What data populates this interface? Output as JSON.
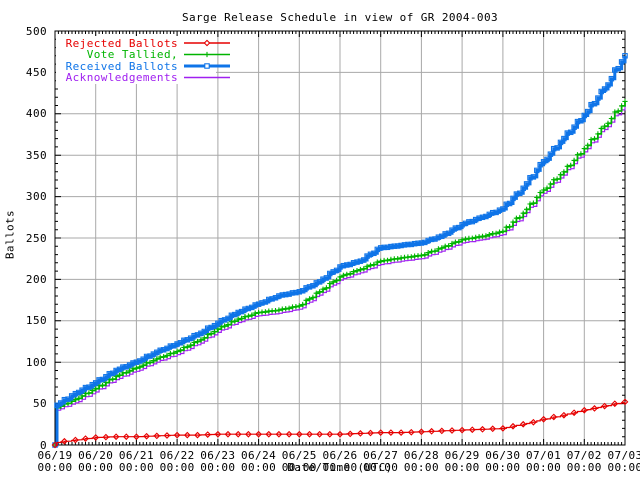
{
  "chart_data": {
    "type": "line",
    "title": "Sarge Release Schedule in view of GR 2004-003",
    "xlabel": "Date/Time (UTC)",
    "ylabel": "Ballots",
    "ylim": [
      0,
      500
    ],
    "y_ticks": [
      0,
      50,
      100,
      150,
      200,
      250,
      300,
      350,
      400,
      450,
      500
    ],
    "x_tick_dates": [
      "06/19",
      "06/20",
      "06/21",
      "06/22",
      "06/23",
      "06/24",
      "06/25",
      "06/26",
      "06/27",
      "06/28",
      "06/29",
      "06/30",
      "07/01",
      "07/02",
      "07/03"
    ],
    "x_tick_time": "00:00",
    "x_range_days": [
      0,
      14
    ],
    "grid": true,
    "grid_color": "#a8a8a8",
    "axis_color": "#000000",
    "background_color": "#ffffff",
    "legend_position": "top-left",
    "x": [
      0,
      0.05,
      0.5,
      1,
      1.5,
      2,
      2.5,
      3,
      3.5,
      4,
      4.5,
      5,
      5.5,
      6,
      6.5,
      7,
      7.5,
      8,
      8.5,
      9,
      9.5,
      10,
      10.5,
      11,
      11.5,
      12,
      12.5,
      13,
      13.5,
      14
    ],
    "series": [
      {
        "name": "Rejected Ballots",
        "color": "#e60000",
        "marker": "diamond",
        "values": [
          0,
          3,
          6,
          9,
          10,
          10,
          11,
          12,
          12,
          13,
          13,
          13,
          13,
          13,
          13,
          13,
          14,
          15,
          15,
          16,
          17,
          18,
          19,
          20,
          25,
          31,
          36,
          42,
          47,
          52
        ]
      },
      {
        "name": "Vote Tallied,",
        "color": "#00b400",
        "marker": "plus",
        "values": [
          0,
          45,
          55,
          68,
          83,
          93,
          104,
          113,
          125,
          140,
          152,
          160,
          163,
          168,
          185,
          203,
          212,
          222,
          226,
          229,
          238,
          248,
          252,
          258,
          280,
          308,
          330,
          358,
          385,
          415
        ]
      },
      {
        "name": "Received Ballots",
        "color": "#0f74e8",
        "marker": "square",
        "values": [
          0,
          48,
          62,
          75,
          90,
          100,
          112,
          122,
          133,
          147,
          160,
          170,
          180,
          185,
          197,
          215,
          222,
          238,
          241,
          244,
          252,
          266,
          275,
          285,
          310,
          342,
          370,
          398,
          430,
          470
        ]
      },
      {
        "name": "Acknowledgements",
        "color": "#a020f0",
        "marker": "none",
        "values": [
          0,
          42,
          51,
          64,
          79,
          89,
          100,
          109,
          121,
          136,
          148,
          156,
          159,
          164,
          181,
          199,
          208,
          218,
          222,
          225,
          234,
          244,
          248,
          254,
          276,
          304,
          326,
          354,
          381,
          410
        ]
      }
    ]
  }
}
